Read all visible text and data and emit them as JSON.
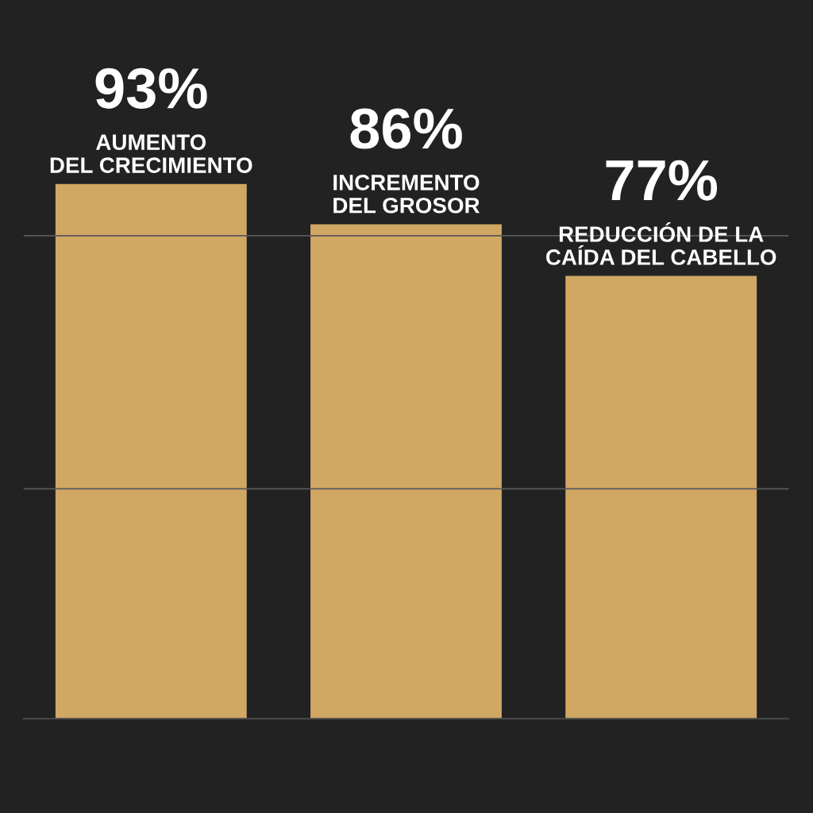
{
  "chart_data": {
    "type": "bar",
    "categories": [
      "AUMENTO\nDEL CRECIMIENTO",
      "INCREMENTO\nDEL GROSOR",
      "REDUCCIÓN DE LA\nCAÍDA DEL CABELLO"
    ],
    "values": [
      93,
      86,
      77
    ],
    "value_labels": [
      "93%",
      "86%",
      "77%"
    ],
    "color": "#d1a764",
    "ylim": [
      0,
      125
    ],
    "ref_lines": [
      {
        "axis": "y",
        "value": 40,
        "color": "#5a5a5a"
      },
      {
        "axis": "y",
        "value": 84,
        "color": "#5a5a5a"
      }
    ],
    "tick_labels": "x"
  }
}
